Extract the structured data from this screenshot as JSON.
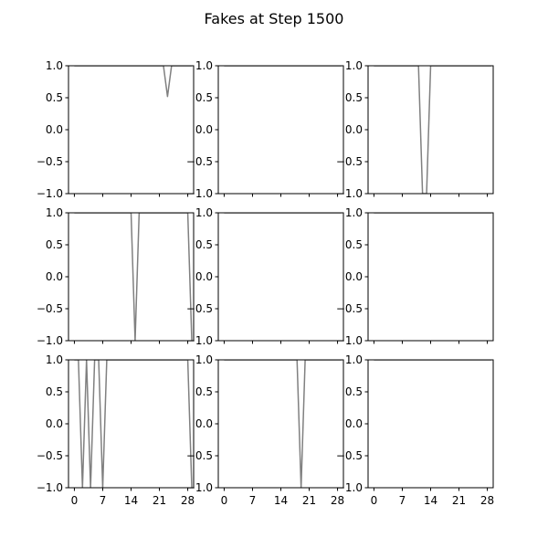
{
  "figure": {
    "title": "Fakes at Step 1500"
  },
  "style": {
    "line_color": "#808080",
    "axes_color": "#000000",
    "background": "#ffffff"
  },
  "chart_data": {
    "type": "line",
    "layout": "3x3 grid of subplots",
    "x_range": [
      -1.45,
      29.45
    ],
    "y_range": [
      -1.0,
      1.0
    ],
    "x_ticks": [
      0,
      7,
      14,
      21,
      28
    ],
    "y_ticks": [
      -1.0,
      -0.5,
      0.0,
      0.5,
      1.0
    ],
    "x_tick_labels": [
      "0",
      "7",
      "14",
      "21",
      "28"
    ],
    "y_tick_labels": [
      "−1.0",
      "−0.5",
      "0.0",
      "0.5",
      "1.0"
    ],
    "grid": false,
    "legend": "none",
    "shared_x": true,
    "panels": [
      {
        "row": 0,
        "col": 0,
        "values": [
          1,
          1,
          1,
          1,
          1,
          1,
          1,
          1,
          1,
          1,
          1,
          1,
          1,
          1,
          1,
          1,
          1,
          1,
          1,
          1,
          1,
          1,
          1,
          0.52,
          1,
          1,
          1,
          1,
          1,
          1
        ]
      },
      {
        "row": 0,
        "col": 1,
        "values": [
          1,
          1,
          1,
          1,
          1,
          1,
          1,
          1,
          1,
          1,
          1,
          1,
          1,
          1,
          1,
          1,
          1,
          1,
          1,
          1,
          1,
          1,
          1,
          1,
          1,
          1,
          1,
          1,
          1,
          1
        ]
      },
      {
        "row": 0,
        "col": 2,
        "values": [
          1,
          1,
          1,
          1,
          1,
          1,
          1,
          1,
          1,
          1,
          1,
          1,
          -1,
          -1,
          1,
          1,
          1,
          1,
          1,
          1,
          1,
          1,
          1,
          1,
          1,
          1,
          1,
          1,
          1,
          1
        ]
      },
      {
        "row": 1,
        "col": 0,
        "values": [
          1,
          1,
          1,
          1,
          1,
          1,
          1,
          1,
          1,
          1,
          1,
          1,
          1,
          1,
          1,
          -1,
          1,
          1,
          1,
          1,
          1,
          1,
          1,
          1,
          1,
          1,
          1,
          1,
          1,
          -1
        ]
      },
      {
        "row": 1,
        "col": 1,
        "values": [
          1,
          1,
          1,
          1,
          1,
          1,
          1,
          1,
          1,
          1,
          1,
          1,
          1,
          1,
          1,
          1,
          1,
          1,
          1,
          1,
          1,
          1,
          1,
          1,
          1,
          1,
          1,
          1,
          1,
          1
        ]
      },
      {
        "row": 1,
        "col": 2,
        "values": [
          1,
          1,
          1,
          1,
          1,
          1,
          1,
          1,
          1,
          1,
          1,
          1,
          1,
          1,
          1,
          1,
          1,
          1,
          1,
          1,
          1,
          1,
          1,
          1,
          1,
          1,
          1,
          1,
          1,
          1
        ]
      },
      {
        "row": 2,
        "col": 0,
        "values": [
          1,
          1,
          -1,
          1,
          -1,
          1,
          1,
          -1,
          1,
          1,
          1,
          1,
          1,
          1,
          1,
          1,
          1,
          1,
          1,
          1,
          1,
          1,
          1,
          1,
          1,
          1,
          1,
          1,
          1,
          -1
        ]
      },
      {
        "row": 2,
        "col": 1,
        "values": [
          1,
          1,
          1,
          1,
          1,
          1,
          1,
          1,
          1,
          1,
          1,
          1,
          1,
          1,
          1,
          1,
          1,
          1,
          1,
          -1,
          1,
          1,
          1,
          1,
          1,
          1,
          1,
          1,
          1,
          1
        ]
      },
      {
        "row": 2,
        "col": 2,
        "values": [
          1,
          1,
          1,
          1,
          1,
          1,
          1,
          1,
          1,
          1,
          1,
          1,
          1,
          1,
          1,
          1,
          1,
          1,
          1,
          1,
          1,
          1,
          1,
          1,
          1,
          1,
          1,
          1,
          1,
          1
        ]
      }
    ]
  }
}
